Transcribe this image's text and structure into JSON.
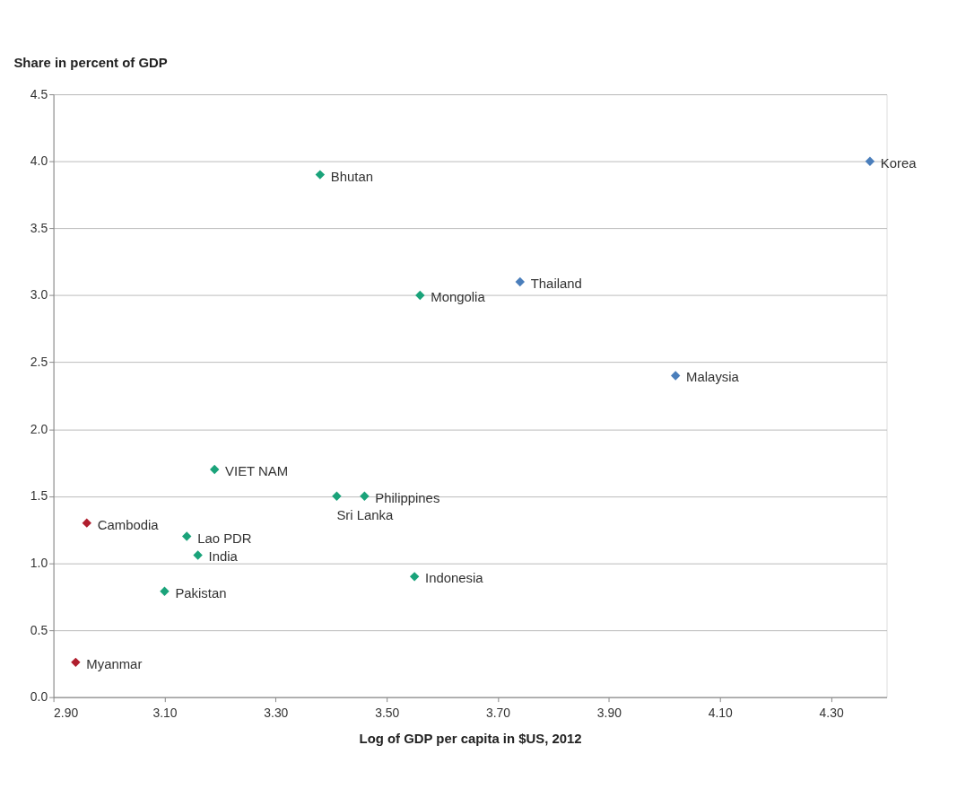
{
  "chart_data": {
    "type": "scatter",
    "xlabel": "Log of GDP per capita in $US, 2012",
    "ylabel": "Share in percent of GDP",
    "marker": "diamond",
    "grid": "y",
    "legend": false,
    "xlim": [
      2.9,
      4.4
    ],
    "xticks": [
      {
        "value": 2.9,
        "label": "2.90"
      },
      {
        "value": 3.1,
        "label": "3.10"
      },
      {
        "value": 3.3,
        "label": "3.30"
      },
      {
        "value": 3.5,
        "label": "3.50"
      },
      {
        "value": 3.7,
        "label": "3.70"
      },
      {
        "value": 3.9,
        "label": "3.90"
      },
      {
        "value": 4.1,
        "label": "4.10"
      },
      {
        "value": 4.3,
        "label": "4.30"
      }
    ],
    "ylim": [
      0,
      4.5
    ],
    "yticks": [
      {
        "value": 0,
        "label": "0.0"
      },
      {
        "value": 0.5,
        "label": "0.5"
      },
      {
        "value": 1,
        "label": "1.0"
      },
      {
        "value": 1.5,
        "label": "1.5"
      },
      {
        "value": 2,
        "label": "2.0"
      },
      {
        "value": 2.5,
        "label": "2.5"
      },
      {
        "value": 3,
        "label": "3.0"
      },
      {
        "value": 3.5,
        "label": "3.5"
      },
      {
        "value": 4,
        "label": "4.0"
      },
      {
        "value": 4.5,
        "label": "4.5"
      }
    ],
    "series": [
      {
        "color": "#4a7ebb",
        "x": [
          4.37,
          3.74,
          4.02
        ],
        "values": [
          4.0,
          3.1,
          2.4
        ]
      },
      {
        "color": "#1aa37a",
        "x": [
          3.38,
          3.56,
          3.19,
          3.41,
          3.46,
          3.14,
          3.16,
          3.1,
          3.55
        ],
        "values": [
          3.9,
          3.0,
          1.7,
          1.5,
          1.5,
          1.2,
          1.06,
          0.79,
          0.9
        ]
      },
      {
        "color": "#b01e2e",
        "x": [
          2.96,
          2.94
        ],
        "values": [
          1.3,
          0.26
        ]
      }
    ],
    "annotations": [
      {
        "text": "Korea",
        "x": 4.37,
        "y": 4.0
      },
      {
        "text": "Thailand",
        "x": 3.74,
        "y": 3.1
      },
      {
        "text": "Malaysia",
        "x": 4.02,
        "y": 2.4
      },
      {
        "text": "Bhutan",
        "x": 3.38,
        "y": 3.9
      },
      {
        "text": "Mongolia",
        "x": 3.56,
        "y": 3.0
      },
      {
        "text": "VIET NAM",
        "x": 3.19,
        "y": 1.7
      },
      {
        "text": "Sri Lanka",
        "x": 3.41,
        "y": 1.5
      },
      {
        "text": "Philippines",
        "x": 3.46,
        "y": 1.5
      },
      {
        "text": "Lao PDR",
        "x": 3.14,
        "y": 1.2
      },
      {
        "text": "India",
        "x": 3.16,
        "y": 1.06
      },
      {
        "text": "Pakistan",
        "x": 3.1,
        "y": 0.79
      },
      {
        "text": "Indonesia",
        "x": 3.55,
        "y": 0.9
      },
      {
        "text": "Cambodia",
        "x": 2.96,
        "y": 1.3
      },
      {
        "text": "Myanmar",
        "x": 2.94,
        "y": 0.26
      }
    ]
  }
}
